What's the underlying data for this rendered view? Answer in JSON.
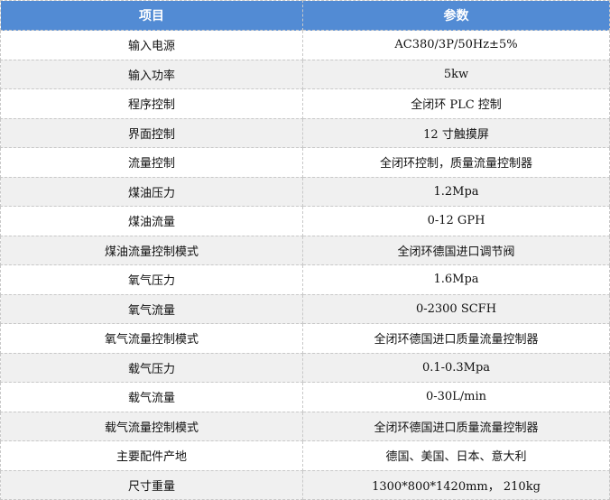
{
  "header": {
    "item": "项目",
    "param": "参数"
  },
  "colors": {
    "header_bg": "#528bd4",
    "alt_row_bg": "#f0f0f0"
  },
  "rows": [
    {
      "item": "输入电源",
      "param": "AC380/3P/50Hz±5%"
    },
    {
      "item": "输入功率",
      "param": "5kw"
    },
    {
      "item": "程序控制",
      "param": "全闭环 PLC 控制"
    },
    {
      "item": "界面控制",
      "param": "12 寸触摸屏"
    },
    {
      "item": "流量控制",
      "param": "全闭环控制，质量流量控制器"
    },
    {
      "item": "煤油压力",
      "param": "1.2Mpa"
    },
    {
      "item": "煤油流量",
      "param": "0-12 GPH"
    },
    {
      "item": "煤油流量控制模式",
      "param": "全闭环德国进口调节阀"
    },
    {
      "item": "氧气压力",
      "param": "1.6Mpa"
    },
    {
      "item": "氧气流量",
      "param": "0-2300 SCFH"
    },
    {
      "item": "氧气流量控制模式",
      "param": "全闭环德国进口质量流量控制器"
    },
    {
      "item": "载气压力",
      "param": "0.1-0.3Mpa"
    },
    {
      "item": "载气流量",
      "param": "0-30L/min"
    },
    {
      "item": "载气流量控制模式",
      "param": "全闭环德国进口质量流量控制器"
    },
    {
      "item": "主要配件产地",
      "param": "德国、美国、日本、意大利"
    },
    {
      "item": "尺寸重量",
      "param": "1300*800*1420mm， 210kg"
    }
  ]
}
